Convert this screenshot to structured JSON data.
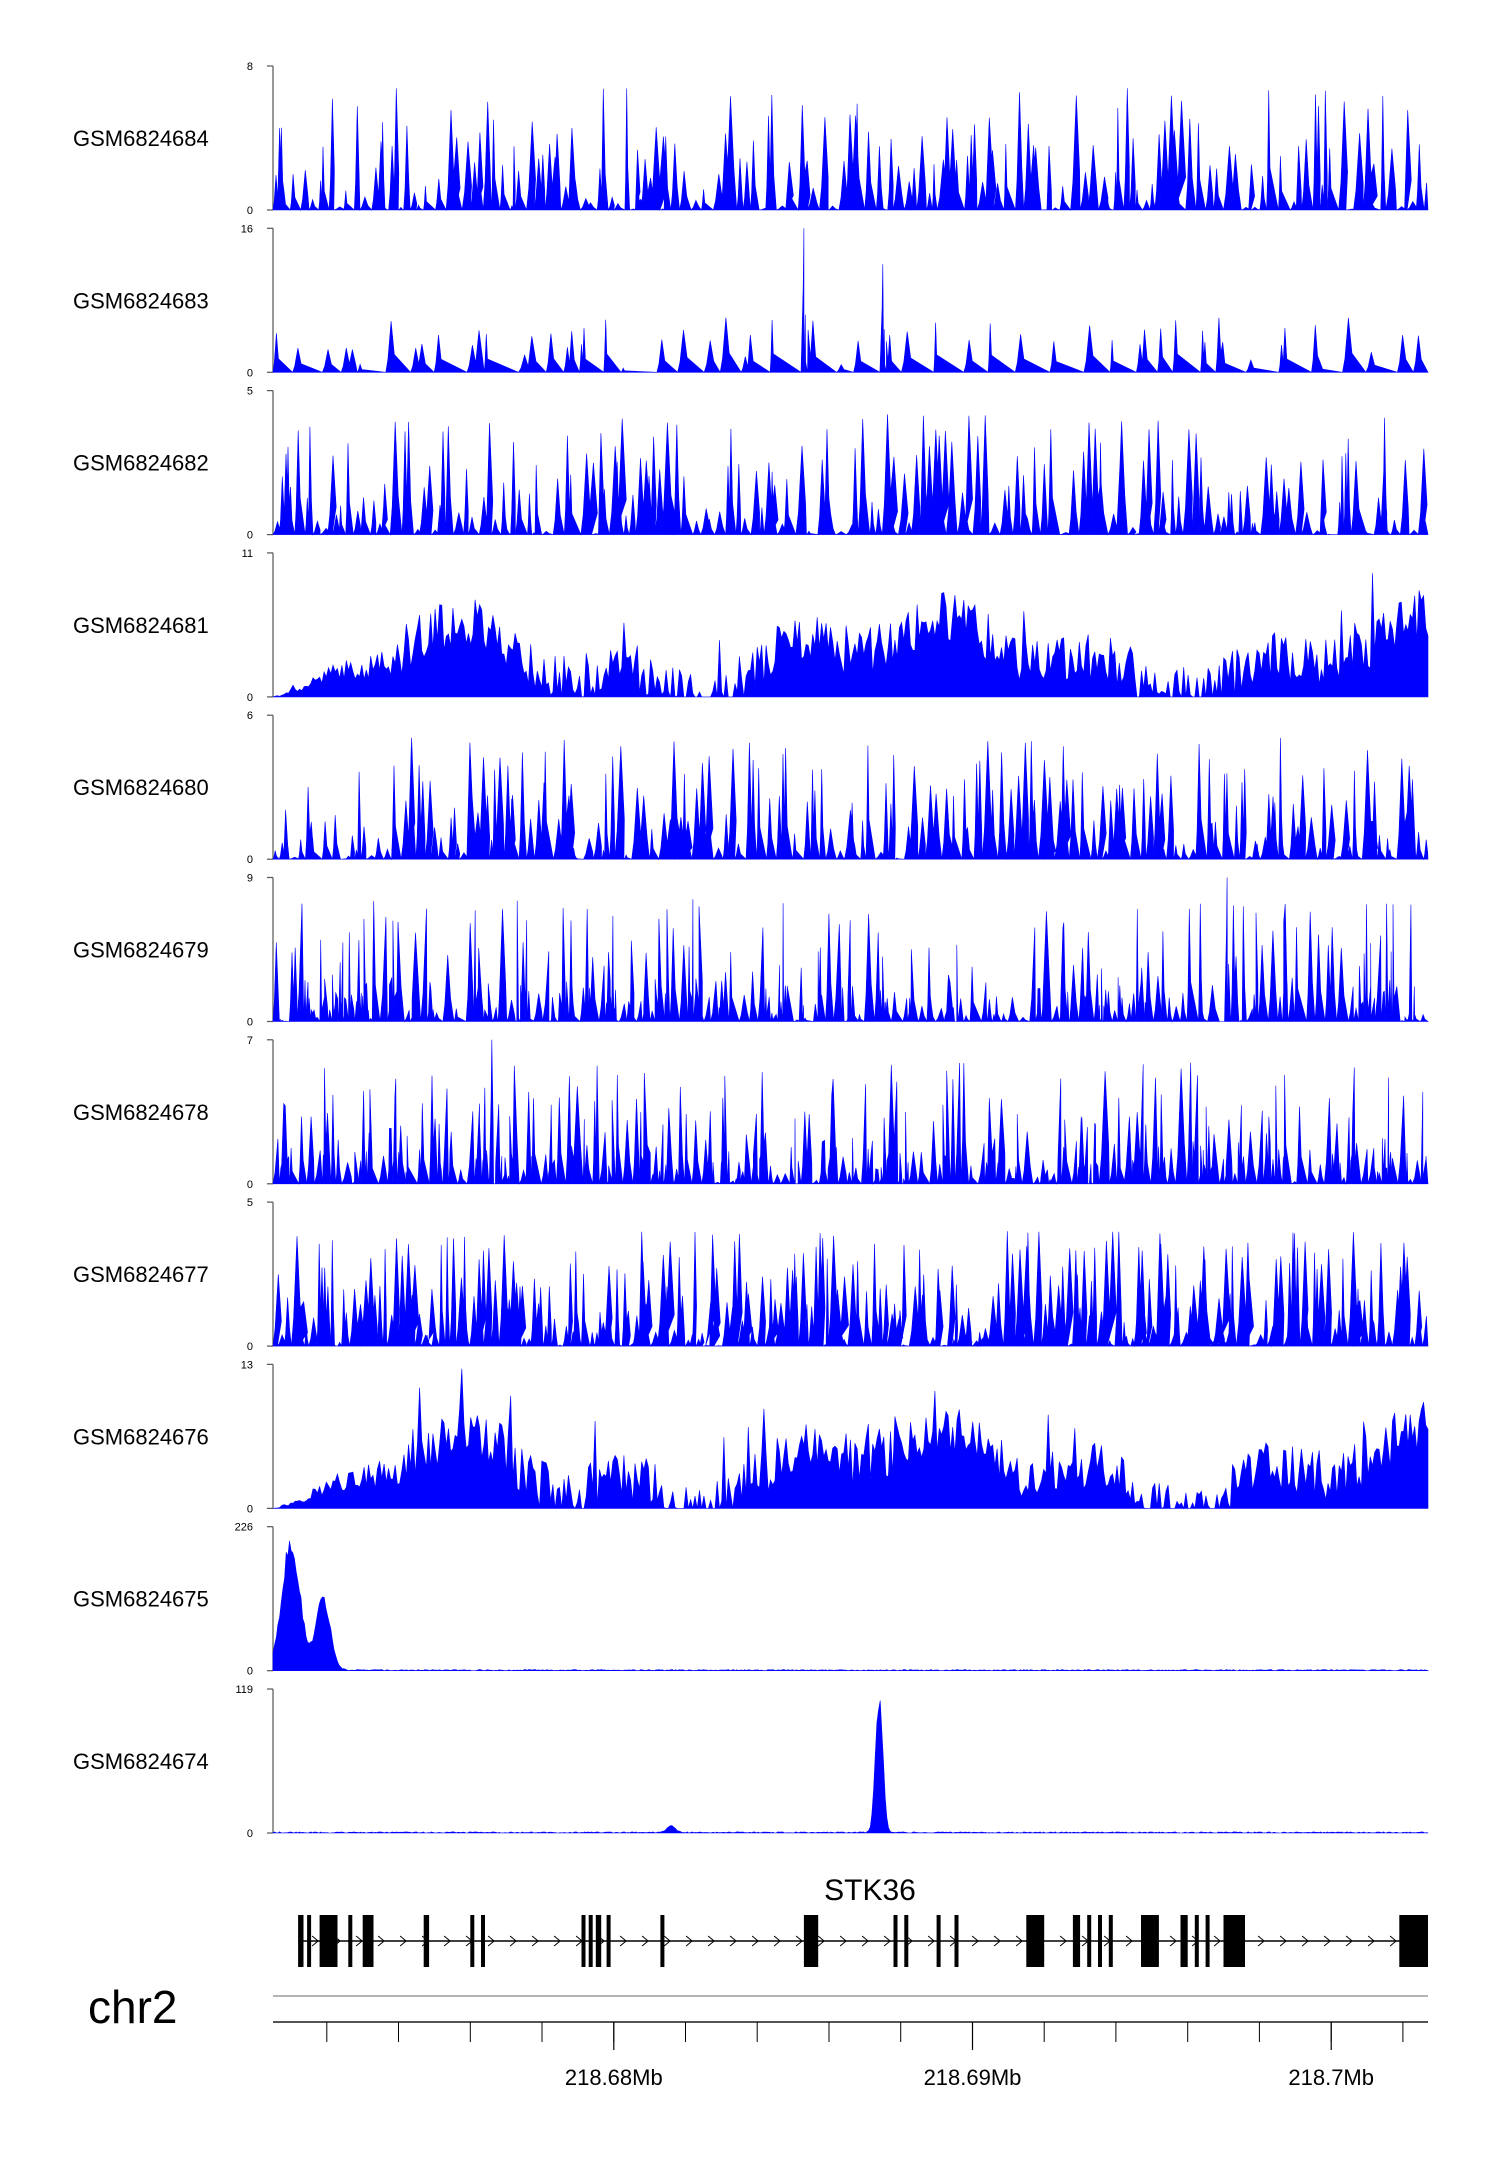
{
  "chart_data": {
    "type": "area",
    "title": "",
    "xlabel": "",
    "ylabel": "",
    "xlim": [
      218.6705,
      218.7027
    ],
    "x_unit": "Mb",
    "chromosome": "chr2",
    "x_ticks": [
      {
        "value": 218.68,
        "label": "218.68Mb"
      },
      {
        "value": 218.69,
        "label": "218.69Mb"
      },
      {
        "value": 218.7,
        "label": "218.7Mb"
      }
    ],
    "fill_color": "#0000ff",
    "tracks": [
      {
        "name": "GSM6824684",
        "ymax": 8,
        "ymin": 0,
        "ymax_label": "8",
        "ymin_label": "0",
        "pattern": "sparse",
        "seed": 11
      },
      {
        "name": "GSM6824683",
        "ymax": 16,
        "ymin": 0,
        "ymax_label": "16",
        "ymin_label": "0",
        "pattern": "very-sparse",
        "seed": 23,
        "peaks": [
          {
            "x": 218.6853,
            "y": 16
          },
          {
            "x": 218.6875,
            "y": 12
          }
        ]
      },
      {
        "name": "GSM6824682",
        "ymax": 5,
        "ymin": 0,
        "ymax_label": "5",
        "ymin_label": "0",
        "pattern": "sparse",
        "seed": 37
      },
      {
        "name": "GSM6824681",
        "ymax": 11,
        "ymin": 0,
        "ymax_label": "11",
        "ymin_label": "0",
        "pattern": "dense",
        "seed": 41
      },
      {
        "name": "GSM6824680",
        "ymax": 6,
        "ymin": 0,
        "ymax_label": "6",
        "ymin_label": "0",
        "pattern": "sparse",
        "seed": 53
      },
      {
        "name": "GSM6824679",
        "ymax": 9,
        "ymin": 0,
        "ymax_label": "9",
        "ymin_label": "0",
        "pattern": "sparse",
        "seed": 67,
        "peaks": [
          {
            "x": 218.6971,
            "y": 9
          }
        ]
      },
      {
        "name": "GSM6824678",
        "ymax": 7,
        "ymin": 0,
        "ymax_label": "7",
        "ymin_label": "0",
        "pattern": "sparse",
        "seed": 71,
        "peaks": [
          {
            "x": 218.6766,
            "y": 7
          }
        ]
      },
      {
        "name": "GSM6824677",
        "ymax": 5,
        "ymin": 0,
        "ymax_label": "5",
        "ymin_label": "0",
        "pattern": "medium",
        "seed": 83
      },
      {
        "name": "GSM6824676",
        "ymax": 13,
        "ymin": 0,
        "ymax_label": "13",
        "ymin_label": "0",
        "pattern": "dense",
        "seed": 97
      },
      {
        "name": "GSM6824675",
        "ymax": 226,
        "ymin": 0,
        "ymax_label": "226",
        "ymin_label": "0",
        "pattern": "single-peak",
        "seed": 101,
        "peaks": [
          {
            "x": 218.671,
            "y": 215,
            "w": 0.00045
          },
          {
            "x": 218.6719,
            "y": 120,
            "w": 0.00035
          }
        ]
      },
      {
        "name": "GSM6824674",
        "ymax": 119,
        "ymin": 0,
        "ymax_label": "119",
        "ymin_label": "0",
        "pattern": "single-peak",
        "seed": 113,
        "peaks": [
          {
            "x": 218.6874,
            "y": 119,
            "w": 0.00018
          },
          {
            "x": 218.6816,
            "y": 6,
            "w": 0.0002
          }
        ]
      }
    ],
    "gene": {
      "name": "STK36",
      "strand": "+",
      "start": 218.6712,
      "end": 218.7027,
      "exons": [
        [
          218.6712,
          218.67135
        ],
        [
          218.67145,
          218.67152
        ],
        [
          218.6718,
          218.6723
        ],
        [
          218.6726,
          218.6727
        ],
        [
          218.673,
          218.6733
        ],
        [
          218.6747,
          218.67485
        ],
        [
          218.676,
          218.6761
        ],
        [
          218.6763,
          218.6764
        ],
        [
          218.6791,
          218.67918
        ],
        [
          218.6793,
          218.6794
        ],
        [
          218.6795,
          218.67965
        ],
        [
          218.6798,
          218.6799
        ],
        [
          218.6813,
          218.6813
        ],
        [
          218.6853,
          218.6857
        ],
        [
          218.6878,
          218.6879
        ],
        [
          218.6881,
          218.68815
        ],
        [
          218.689,
          218.6891
        ],
        [
          218.6895,
          218.68955
        ],
        [
          218.6915,
          218.692
        ],
        [
          218.6928,
          218.693
        ],
        [
          218.6932,
          218.6933
        ],
        [
          218.6935,
          218.6936
        ],
        [
          218.6938,
          218.6939
        ],
        [
          218.6947,
          218.6952
        ],
        [
          218.6958,
          218.696
        ],
        [
          218.6962,
          218.6963
        ],
        [
          218.6965,
          218.6966
        ],
        [
          218.697,
          218.6976
        ],
        [
          218.7019,
          218.7027
        ]
      ]
    }
  }
}
